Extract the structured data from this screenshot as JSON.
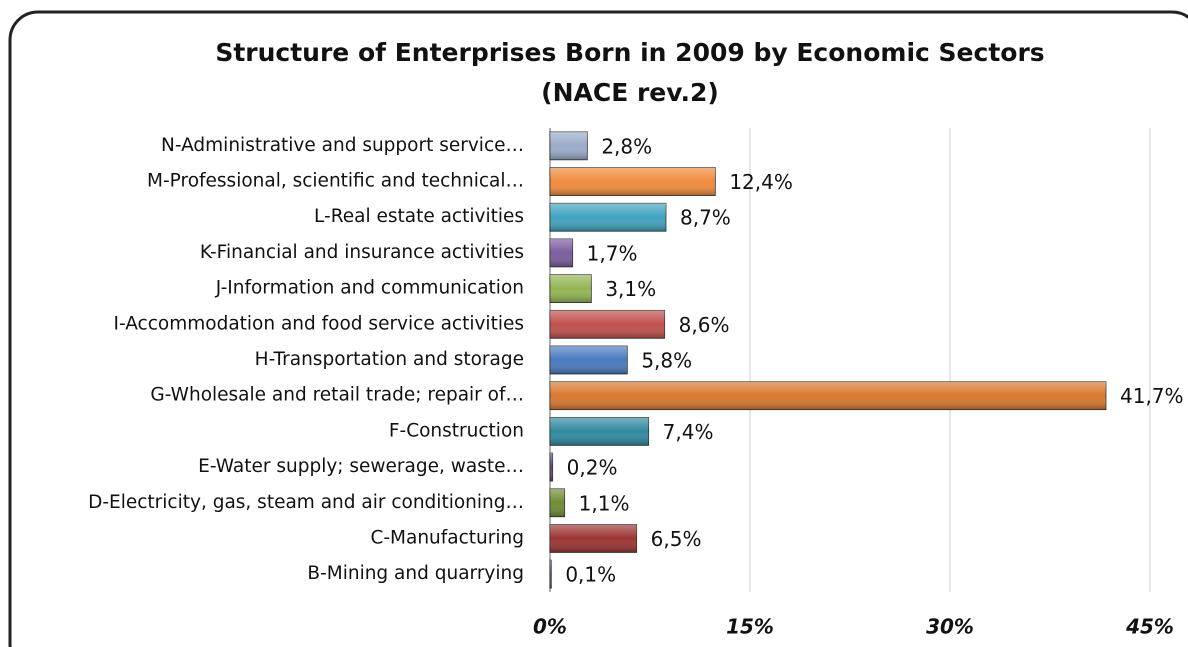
{
  "chart_data": {
    "type": "barh",
    "title": [
      "Structure of Enterprises Born in 2009 by Economic Sectors",
      "(NACE rev.2)"
    ],
    "categories": [
      "N-Administrative and support service…",
      "M-Professional, scientific and technical…",
      "L-Real estate activities",
      "K-Financial and insurance activities",
      "J-Information and communication",
      "I-Accommodation and food service activities",
      "H-Transportation and storage",
      "G-Wholesale and retail trade; repair of…",
      "F-Construction",
      "E-Water supply; sewerage, waste…",
      "D-Electricity, gas, steam and air conditioning…",
      "C-Manufacturing",
      "B-Mining and quarrying"
    ],
    "values": [
      2.8,
      12.4,
      8.7,
      1.7,
      3.1,
      8.6,
      5.8,
      41.7,
      7.4,
      0.2,
      1.1,
      6.5,
      0.1
    ],
    "value_labels": [
      "2,8%",
      "12,4%",
      "8,7%",
      "1,7%",
      "3,1%",
      "8,6%",
      "5,8%",
      "41,7%",
      "7,4%",
      "0,2%",
      "1,1%",
      "6,5%",
      "0,1%"
    ],
    "colors": [
      "#9aabc9",
      "#f08a3c",
      "#3fa3bd",
      "#7a5c9e",
      "#93b553",
      "#c0504d",
      "#4a7abf",
      "#d9782f",
      "#2f8aa0",
      "#5f497a",
      "#6f8c35",
      "#9b3533",
      "#4f6f9f"
    ],
    "xlim": [
      0,
      45
    ],
    "xticks": [
      {
        "value": 0,
        "label": "0%"
      },
      {
        "value": 15,
        "label": "15%"
      },
      {
        "value": 30,
        "label": "30%"
      },
      {
        "value": 45,
        "label": "45%"
      }
    ],
    "grid": true
  }
}
